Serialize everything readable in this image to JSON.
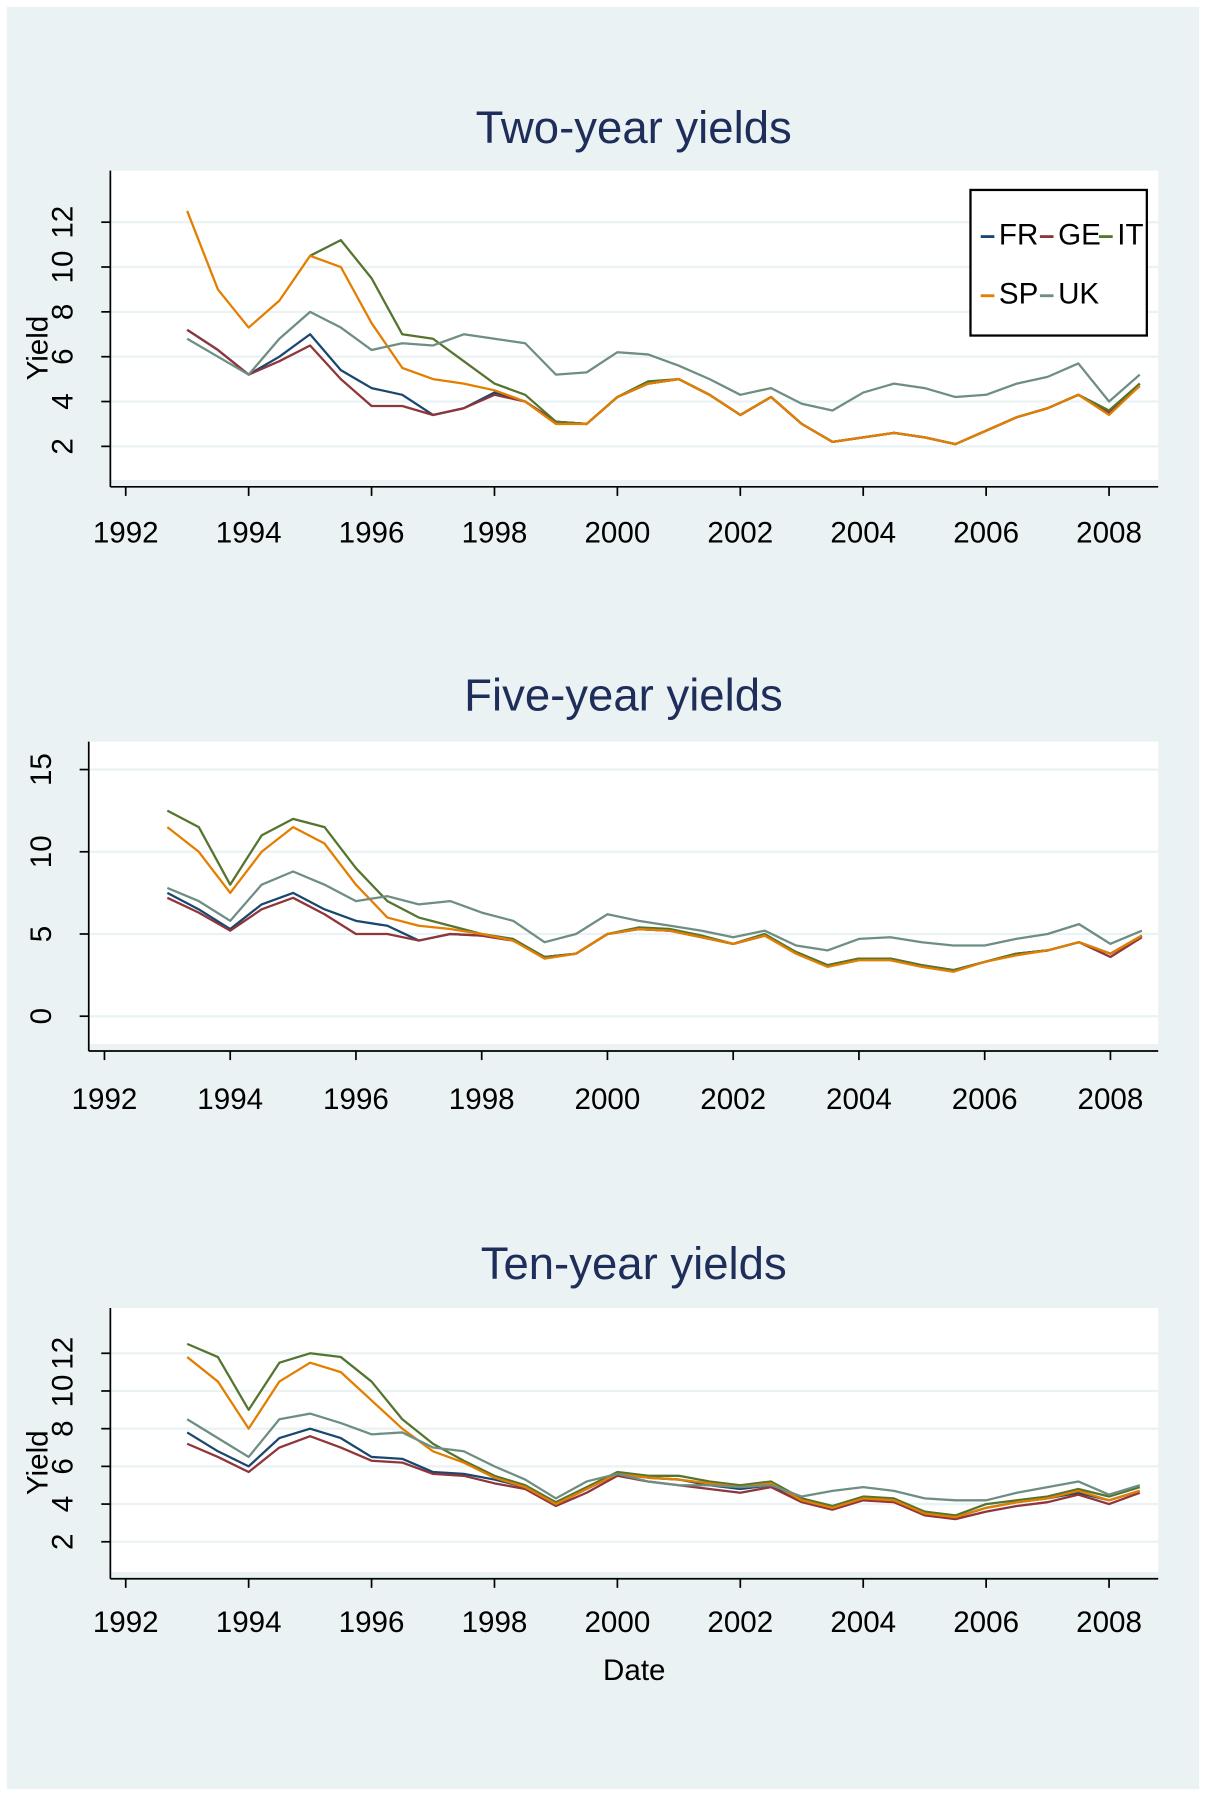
{
  "chart_data": [
    {
      "type": "line",
      "title": "Two-year yields",
      "ylabel": "Yield",
      "x": [
        1993,
        1993.5,
        1994,
        1994.5,
        1995,
        1995.5,
        1996,
        1996.5,
        1997,
        1997.5,
        1998,
        1998.5,
        1999,
        1999.5,
        2000,
        2000.5,
        2001,
        2001.5,
        2002,
        2002.5,
        2003,
        2003.5,
        2004,
        2004.5,
        2005,
        2005.5,
        2006,
        2006.5,
        2007,
        2007.5,
        2008,
        2008.5
      ],
      "xlim": [
        1991.75,
        2008.8
      ],
      "xticks": [
        1992,
        1994,
        1996,
        1998,
        2000,
        2002,
        2004,
        2006,
        2008
      ],
      "ylim": [
        0.5,
        14.3
      ],
      "yticks": [
        2,
        4,
        6,
        8,
        10,
        12
      ],
      "grid": true,
      "legend": "top-right",
      "series": [
        {
          "name": "FR",
          "color": "#1a476f",
          "values": [
            7.2,
            6.3,
            5.2,
            6.0,
            7.0,
            5.4,
            4.6,
            4.3,
            3.4,
            3.7,
            4.4,
            4.0,
            3.1,
            3.0,
            4.2,
            4.8,
            5.0,
            4.3,
            3.4,
            4.2,
            3.0,
            2.2,
            2.4,
            2.6,
            2.4,
            2.1,
            2.7,
            3.3,
            3.7,
            4.3,
            3.5,
            4.8
          ]
        },
        {
          "name": "GE",
          "color": "#90353b",
          "values": [
            7.2,
            6.3,
            5.2,
            5.8,
            6.5,
            5.0,
            3.8,
            3.8,
            3.4,
            3.7,
            4.3,
            4.0,
            3.1,
            3.0,
            4.2,
            4.8,
            5.0,
            4.3,
            3.4,
            4.2,
            3.0,
            2.2,
            2.4,
            2.6,
            2.4,
            2.1,
            2.7,
            3.3,
            3.7,
            4.3,
            3.5,
            4.7
          ]
        },
        {
          "name": "IT",
          "color": "#55752f",
          "values": [
            null,
            null,
            null,
            null,
            10.5,
            11.2,
            9.5,
            7.0,
            6.8,
            5.8,
            4.8,
            4.3,
            3.1,
            3.0,
            4.2,
            4.9,
            5.0,
            4.3,
            3.4,
            4.2,
            3.0,
            2.2,
            2.4,
            2.6,
            2.4,
            2.1,
            2.7,
            3.3,
            3.7,
            4.3,
            3.6,
            4.8
          ]
        },
        {
          "name": "SP",
          "color": "#e37e00",
          "values": [
            12.5,
            9.0,
            7.3,
            8.5,
            10.5,
            10.0,
            7.5,
            5.5,
            5.0,
            4.8,
            4.5,
            4.0,
            3.0,
            3.0,
            4.2,
            4.8,
            5.0,
            4.3,
            3.4,
            4.2,
            3.0,
            2.2,
            2.4,
            2.6,
            2.4,
            2.1,
            2.7,
            3.3,
            3.7,
            4.3,
            3.4,
            4.7
          ]
        },
        {
          "name": "UK",
          "color": "#6e8e84",
          "values": [
            6.8,
            6.0,
            5.2,
            6.8,
            8.0,
            7.3,
            6.3,
            6.6,
            6.5,
            7.0,
            6.8,
            6.6,
            5.2,
            5.3,
            6.2,
            6.1,
            5.6,
            5.0,
            4.3,
            4.6,
            3.9,
            3.6,
            4.4,
            4.8,
            4.6,
            4.2,
            4.3,
            4.8,
            5.1,
            5.7,
            4.0,
            5.2
          ]
        }
      ]
    },
    {
      "type": "line",
      "title": "Five-year yields",
      "x": [
        1993,
        1993.5,
        1994,
        1994.5,
        1995,
        1995.5,
        1996,
        1996.5,
        1997,
        1997.5,
        1998,
        1998.5,
        1999,
        1999.5,
        2000,
        2000.5,
        2001,
        2001.5,
        2002,
        2002.5,
        2003,
        2003.5,
        2004,
        2004.5,
        2005,
        2005.5,
        2006,
        2006.5,
        2007,
        2007.5,
        2008,
        2008.5
      ],
      "xlim": [
        1991.75,
        2008.76
      ],
      "xticks": [
        1992,
        1994,
        1996,
        1998,
        2000,
        2002,
        2004,
        2006,
        2008
      ],
      "ylim": [
        -1.7,
        16.7
      ],
      "yticks": [
        0,
        5,
        10,
        15
      ],
      "grid": true,
      "series": [
        {
          "color": "#1a476f",
          "values": [
            7.5,
            6.5,
            5.3,
            6.8,
            7.5,
            6.5,
            5.8,
            5.5,
            4.6,
            5.0,
            4.9,
            4.6,
            3.6,
            3.8,
            5.0,
            5.3,
            5.2,
            4.8,
            4.4,
            4.9,
            3.9,
            3.1,
            3.5,
            3.5,
            3.1,
            2.8,
            3.3,
            3.8,
            4.0,
            4.5,
            3.8,
            4.9
          ]
        },
        {
          "color": "#90353b",
          "values": [
            7.2,
            6.3,
            5.2,
            6.5,
            7.2,
            6.2,
            5.0,
            5.0,
            4.6,
            5.0,
            4.9,
            4.6,
            3.6,
            3.8,
            5.0,
            5.3,
            5.2,
            4.8,
            4.4,
            4.9,
            3.9,
            3.1,
            3.5,
            3.5,
            3.1,
            2.8,
            3.3,
            3.8,
            4.0,
            4.5,
            3.6,
            4.8
          ]
        },
        {
          "color": "#55752f",
          "values": [
            12.5,
            11.5,
            8.0,
            11.0,
            12.0,
            11.5,
            9.0,
            7.0,
            6.0,
            5.5,
            5.0,
            4.7,
            3.6,
            3.8,
            5.0,
            5.4,
            5.3,
            4.9,
            4.4,
            5.0,
            3.9,
            3.1,
            3.5,
            3.5,
            3.1,
            2.8,
            3.3,
            3.8,
            4.0,
            4.5,
            3.8,
            4.9
          ]
        },
        {
          "color": "#e37e00",
          "values": [
            11.5,
            10.0,
            7.5,
            10.0,
            11.5,
            10.5,
            8.0,
            6.0,
            5.5,
            5.3,
            5.0,
            4.6,
            3.5,
            3.8,
            5.0,
            5.3,
            5.2,
            4.8,
            4.4,
            4.9,
            3.8,
            3.0,
            3.4,
            3.4,
            3.0,
            2.7,
            3.3,
            3.7,
            4.0,
            4.5,
            3.8,
            4.9
          ]
        },
        {
          "color": "#6e8e84",
          "values": [
            7.8,
            7.0,
            5.8,
            8.0,
            8.8,
            8.0,
            7.0,
            7.3,
            6.8,
            7.0,
            6.3,
            5.8,
            4.5,
            5.0,
            6.2,
            5.8,
            5.5,
            5.2,
            4.8,
            5.2,
            4.3,
            4.0,
            4.7,
            4.8,
            4.5,
            4.3,
            4.3,
            4.7,
            5.0,
            5.6,
            4.4,
            5.2
          ]
        }
      ]
    },
    {
      "type": "line",
      "title": "Ten-year yields",
      "ylabel": "Yield",
      "xlabel": "Date",
      "x": [
        1993,
        1993.5,
        1994,
        1994.5,
        1995,
        1995.5,
        1996,
        1996.5,
        1997,
        1997.5,
        1998,
        1998.5,
        1999,
        1999.5,
        2000,
        2000.5,
        2001,
        2001.5,
        2002,
        2002.5,
        2003,
        2003.5,
        2004,
        2004.5,
        2005,
        2005.5,
        2006,
        2006.5,
        2007,
        2007.5,
        2008,
        2008.5
      ],
      "xlim": [
        1991.75,
        2008.8
      ],
      "xticks": [
        1992,
        1994,
        1996,
        1998,
        2000,
        2002,
        2004,
        2006,
        2008
      ],
      "ylim": [
        0.4,
        14.4
      ],
      "yticks": [
        2,
        4,
        6,
        8,
        10,
        12
      ],
      "grid": true,
      "series": [
        {
          "color": "#1a476f",
          "values": [
            7.8,
            6.8,
            6.0,
            7.5,
            8.0,
            7.5,
            6.5,
            6.4,
            5.7,
            5.6,
            5.3,
            4.9,
            4.0,
            4.8,
            5.6,
            5.4,
            5.3,
            5.0,
            4.8,
            5.0,
            4.2,
            3.8,
            4.3,
            4.2,
            3.6,
            3.3,
            3.8,
            4.1,
            4.3,
            4.6,
            4.2,
            4.7
          ]
        },
        {
          "color": "#90353b",
          "values": [
            7.2,
            6.5,
            5.7,
            7.0,
            7.6,
            7.0,
            6.3,
            6.2,
            5.6,
            5.5,
            5.1,
            4.8,
            3.9,
            4.6,
            5.5,
            5.2,
            5.0,
            4.8,
            4.6,
            4.9,
            4.1,
            3.7,
            4.2,
            4.1,
            3.4,
            3.2,
            3.6,
            3.9,
            4.1,
            4.5,
            4.0,
            4.6
          ]
        },
        {
          "color": "#55752f",
          "values": [
            12.5,
            11.8,
            9.0,
            11.5,
            12.0,
            11.8,
            10.5,
            8.5,
            7.2,
            6.3,
            5.5,
            5.0,
            4.1,
            4.9,
            5.7,
            5.5,
            5.5,
            5.2,
            5.0,
            5.2,
            4.3,
            3.9,
            4.4,
            4.3,
            3.6,
            3.4,
            4.0,
            4.2,
            4.4,
            4.8,
            4.4,
            4.9
          ]
        },
        {
          "color": "#e37e00",
          "values": [
            11.8,
            10.5,
            8.0,
            10.5,
            11.5,
            11.0,
            9.5,
            8.0,
            6.8,
            6.2,
            5.4,
            4.9,
            4.0,
            4.8,
            5.6,
            5.4,
            5.3,
            5.1,
            4.9,
            5.1,
            4.2,
            3.8,
            4.3,
            4.2,
            3.5,
            3.3,
            3.8,
            4.1,
            4.3,
            4.7,
            4.2,
            4.7
          ]
        },
        {
          "color": "#6e8e84",
          "values": [
            8.5,
            7.5,
            6.5,
            8.5,
            8.8,
            8.3,
            7.7,
            7.8,
            7.0,
            6.8,
            6.0,
            5.3,
            4.3,
            5.2,
            5.6,
            5.2,
            5.0,
            5.0,
            4.9,
            5.0,
            4.4,
            4.7,
            4.9,
            4.7,
            4.3,
            4.2,
            4.2,
            4.6,
            4.9,
            5.2,
            4.5,
            5.0
          ]
        }
      ]
    }
  ]
}
